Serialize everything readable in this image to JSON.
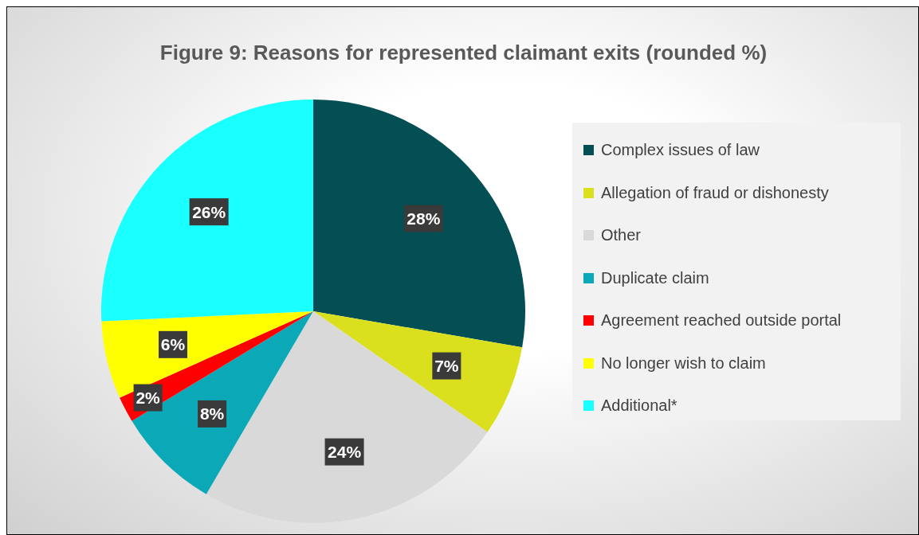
{
  "chart_data": {
    "type": "pie",
    "title": "Figure 9: Reasons for represented claimant exits (rounded %)",
    "categories": [
      "Complex issues of law",
      "Allegation of fraud or dishonesty",
      "Other",
      "Duplicate claim",
      "Agreement reached outside portal",
      "No longer wish to claim",
      "Additional*"
    ],
    "values": [
      28,
      7,
      24,
      8,
      2,
      6,
      26
    ],
    "colors": [
      "#034f54",
      "#dadf1e",
      "#d9d9d9",
      "#0ba8b8",
      "#ff0000",
      "#ffff00",
      "#1affff"
    ],
    "value_labels": [
      "28%",
      "7%",
      "24%",
      "8%",
      "2%",
      "6%",
      "26%"
    ],
    "legend": "right"
  }
}
